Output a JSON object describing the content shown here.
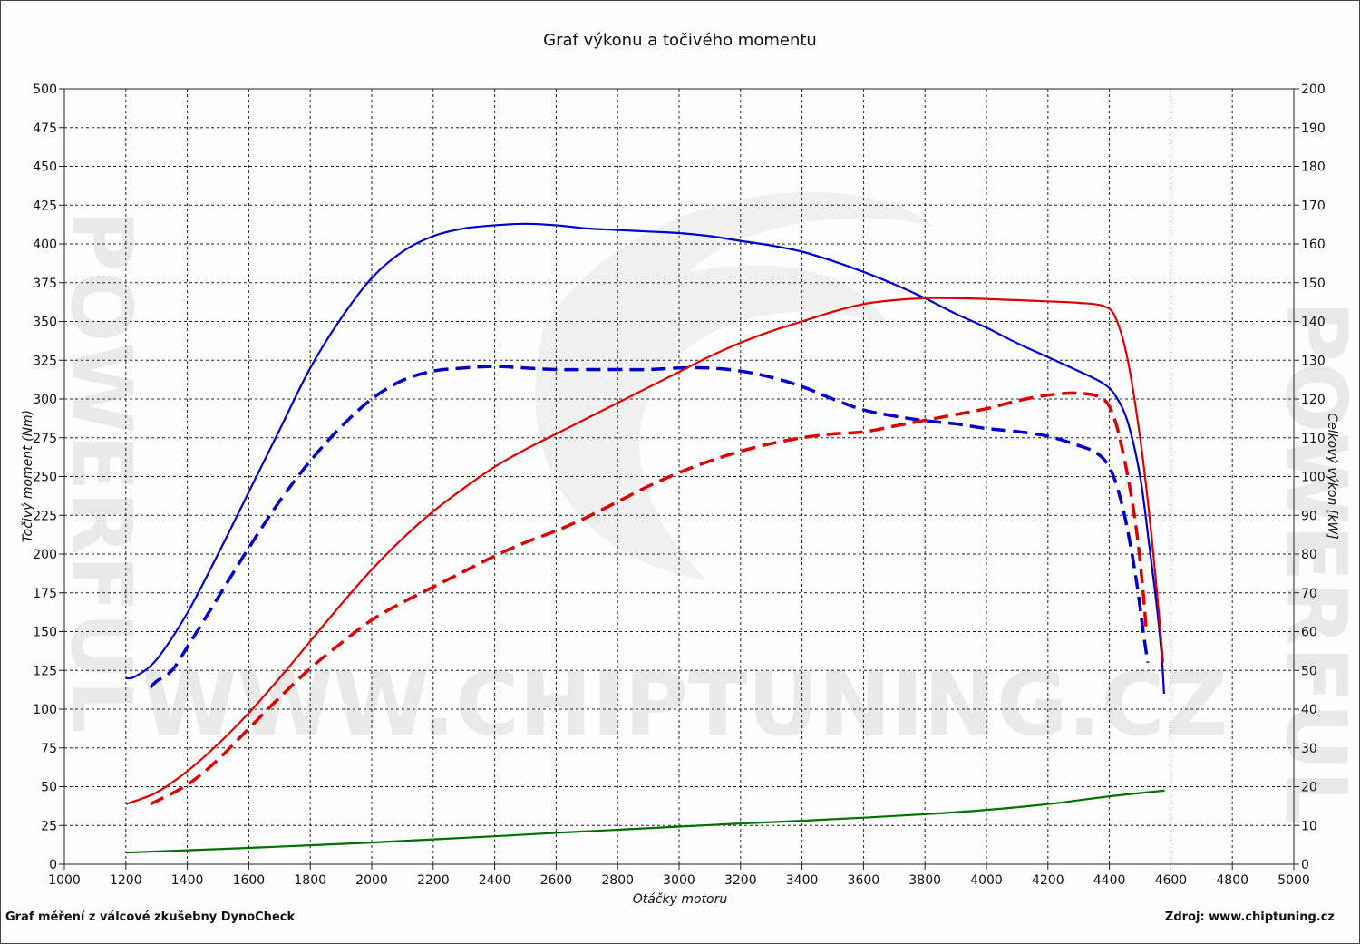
{
  "chart_data": {
    "type": "line",
    "title": "Graf výkonu a točivého momentu",
    "xlabel": "Otáčky motoru",
    "ylabel_left": "Točivý moment (Nm)",
    "ylabel_right": "Celkový výkon [kW]",
    "xlim": [
      1000,
      5000
    ],
    "ylim_left": [
      0,
      500
    ],
    "ylim_right": [
      0,
      200
    ],
    "x_ticks": [
      "1000",
      "1200",
      "1400",
      "1600",
      "1800",
      "2000",
      "2200",
      "2400",
      "2600",
      "2800",
      "3000",
      "3200",
      "3400",
      "3600",
      "3800",
      "4000",
      "4200",
      "4400",
      "4600",
      "4800",
      "5000"
    ],
    "y_ticks_left": [
      "0",
      "25",
      "50",
      "75",
      "100",
      "125",
      "150",
      "175",
      "200",
      "225",
      "250",
      "275",
      "300",
      "325",
      "350",
      "375",
      "400",
      "425",
      "450",
      "475",
      "500"
    ],
    "y_ticks_right": [
      "0",
      "10",
      "20",
      "30",
      "40",
      "50",
      "60",
      "70",
      "80",
      "90",
      "100",
      "110",
      "120",
      "130",
      "140",
      "150",
      "160",
      "170",
      "180",
      "190",
      "200"
    ],
    "grid": true,
    "legend": "none",
    "series": [
      {
        "axis": "left",
        "color": "#0000cc",
        "style": "solid",
        "points": [
          [
            1200,
            120
          ],
          [
            1230,
            121
          ],
          [
            1300,
            132
          ],
          [
            1400,
            162
          ],
          [
            1500,
            200
          ],
          [
            1600,
            240
          ],
          [
            1700,
            280
          ],
          [
            1800,
            320
          ],
          [
            1900,
            352
          ],
          [
            2000,
            378
          ],
          [
            2100,
            395
          ],
          [
            2200,
            405
          ],
          [
            2300,
            410
          ],
          [
            2400,
            412
          ],
          [
            2500,
            413
          ],
          [
            2600,
            412
          ],
          [
            2700,
            410
          ],
          [
            2800,
            409
          ],
          [
            2900,
            408
          ],
          [
            3000,
            407
          ],
          [
            3100,
            405
          ],
          [
            3200,
            402
          ],
          [
            3300,
            399
          ],
          [
            3400,
            395
          ],
          [
            3500,
            389
          ],
          [
            3600,
            382
          ],
          [
            3700,
            374
          ],
          [
            3800,
            365
          ],
          [
            3900,
            355
          ],
          [
            4000,
            346
          ],
          [
            4100,
            336
          ],
          [
            4200,
            327
          ],
          [
            4300,
            318
          ],
          [
            4380,
            310
          ],
          [
            4420,
            302
          ],
          [
            4460,
            285
          ],
          [
            4500,
            250
          ],
          [
            4530,
            205
          ],
          [
            4555,
            165
          ],
          [
            4570,
            135
          ],
          [
            4578,
            110
          ]
        ]
      },
      {
        "axis": "left",
        "color": "#0000cc",
        "style": "dashed",
        "points": [
          [
            1280,
            114
          ],
          [
            1300,
            118
          ],
          [
            1350,
            125
          ],
          [
            1400,
            140
          ],
          [
            1500,
            172
          ],
          [
            1600,
            204
          ],
          [
            1700,
            234
          ],
          [
            1800,
            260
          ],
          [
            1900,
            282
          ],
          [
            2000,
            300
          ],
          [
            2100,
            312
          ],
          [
            2200,
            318
          ],
          [
            2300,
            320
          ],
          [
            2400,
            321
          ],
          [
            2500,
            320
          ],
          [
            2600,
            319
          ],
          [
            2700,
            319
          ],
          [
            2800,
            319
          ],
          [
            2900,
            319
          ],
          [
            3000,
            320
          ],
          [
            3100,
            320
          ],
          [
            3200,
            318
          ],
          [
            3300,
            314
          ],
          [
            3400,
            308
          ],
          [
            3500,
            300
          ],
          [
            3600,
            293
          ],
          [
            3700,
            289
          ],
          [
            3800,
            286
          ],
          [
            3900,
            284
          ],
          [
            4000,
            281
          ],
          [
            4100,
            279
          ],
          [
            4200,
            276
          ],
          [
            4300,
            270
          ],
          [
            4360,
            265
          ],
          [
            4400,
            256
          ],
          [
            4430,
            240
          ],
          [
            4460,
            215
          ],
          [
            4490,
            180
          ],
          [
            4510,
            150
          ],
          [
            4525,
            130
          ]
        ]
      },
      {
        "axis": "right",
        "color": "#dd0000",
        "style": "solid",
        "points": [
          [
            1200,
            15.5
          ],
          [
            1300,
            18.5
          ],
          [
            1400,
            24
          ],
          [
            1500,
            31
          ],
          [
            1600,
            39
          ],
          [
            1700,
            48
          ],
          [
            1800,
            57.5
          ],
          [
            1900,
            67
          ],
          [
            2000,
            76
          ],
          [
            2100,
            84
          ],
          [
            2200,
            91
          ],
          [
            2300,
            97
          ],
          [
            2400,
            102.5
          ],
          [
            2500,
            107
          ],
          [
            2600,
            111
          ],
          [
            2700,
            115
          ],
          [
            2800,
            119
          ],
          [
            2900,
            123
          ],
          [
            3000,
            127
          ],
          [
            3100,
            131
          ],
          [
            3200,
            134.5
          ],
          [
            3300,
            137.5
          ],
          [
            3400,
            140
          ],
          [
            3500,
            142.5
          ],
          [
            3600,
            144.5
          ],
          [
            3700,
            145.5
          ],
          [
            3800,
            146
          ],
          [
            3900,
            146
          ],
          [
            4000,
            145.8
          ],
          [
            4100,
            145.5
          ],
          [
            4200,
            145.2
          ],
          [
            4300,
            144.8
          ],
          [
            4380,
            144
          ],
          [
            4420,
            141
          ],
          [
            4460,
            130
          ],
          [
            4500,
            110
          ],
          [
            4530,
            90
          ],
          [
            4555,
            70
          ],
          [
            4575,
            52
          ]
        ]
      },
      {
        "axis": "right",
        "color": "#dd0000",
        "style": "dashed",
        "points": [
          [
            1280,
            15.5
          ],
          [
            1400,
            20.5
          ],
          [
            1500,
            27
          ],
          [
            1600,
            35
          ],
          [
            1700,
            43
          ],
          [
            1800,
            50.5
          ],
          [
            1900,
            57
          ],
          [
            2000,
            63
          ],
          [
            2100,
            67.5
          ],
          [
            2200,
            71.5
          ],
          [
            2300,
            75.5
          ],
          [
            2400,
            79.5
          ],
          [
            2500,
            83
          ],
          [
            2600,
            86
          ],
          [
            2700,
            89.5
          ],
          [
            2800,
            93.5
          ],
          [
            2900,
            97.5
          ],
          [
            3000,
            101
          ],
          [
            3100,
            104
          ],
          [
            3200,
            106.5
          ],
          [
            3300,
            108.5
          ],
          [
            3400,
            110
          ],
          [
            3500,
            111
          ],
          [
            3600,
            111.5
          ],
          [
            3700,
            113
          ],
          [
            3800,
            114.5
          ],
          [
            3900,
            116
          ],
          [
            4000,
            117.5
          ],
          [
            4100,
            119.5
          ],
          [
            4200,
            121
          ],
          [
            4300,
            121.5
          ],
          [
            4380,
            120
          ],
          [
            4420,
            114
          ],
          [
            4460,
            100
          ],
          [
            4490,
            85
          ],
          [
            4510,
            70
          ],
          [
            4520,
            60
          ]
        ]
      },
      {
        "axis": "right",
        "color": "#007000",
        "style": "solid",
        "points": [
          [
            1200,
            3
          ],
          [
            1400,
            3.6
          ],
          [
            1600,
            4.2
          ],
          [
            1800,
            4.9
          ],
          [
            2000,
            5.6
          ],
          [
            2200,
            6.4
          ],
          [
            2400,
            7.2
          ],
          [
            2600,
            8.1
          ],
          [
            2800,
            8.9
          ],
          [
            3000,
            9.7
          ],
          [
            3200,
            10.5
          ],
          [
            3400,
            11.2
          ],
          [
            3600,
            12
          ],
          [
            3800,
            12.9
          ],
          [
            4000,
            14
          ],
          [
            4200,
            15.5
          ],
          [
            4400,
            17.5
          ],
          [
            4580,
            19
          ]
        ]
      }
    ]
  },
  "footer": {
    "left": "Graf měření z válcové zkušebny DynoCheck",
    "right": "Zdroj: www.chiptuning.cz"
  },
  "watermark": {
    "url_text": "WWW.CHIPTUNING.CZ",
    "brand_text": "POWERFUL"
  }
}
